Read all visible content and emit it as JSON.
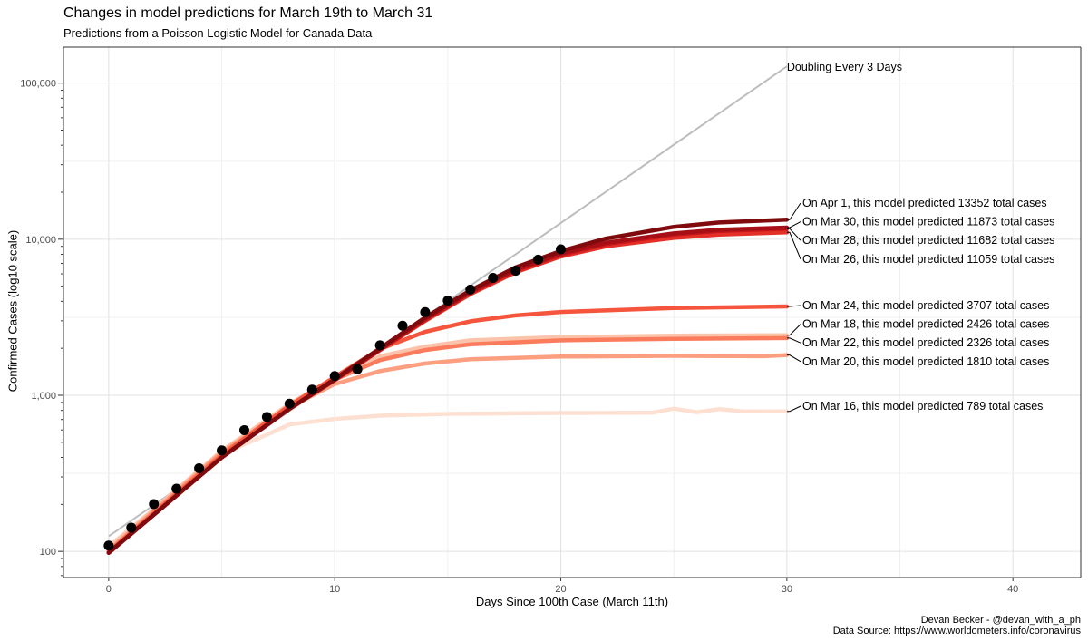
{
  "chart_data": {
    "type": "line",
    "title": "Changes in model predictions for March 19th to March 31",
    "subtitle": "Predictions from a Poisson Logistic Model for Canada Data",
    "xlabel": "Days Since 100th Case (March 11th)",
    "ylabel": "Confirmed Cases (log10 scale)",
    "xlim": [
      -2,
      43
    ],
    "ylim": [
      68,
      170000
    ],
    "yscale": "log10",
    "x_ticks": [
      0,
      10,
      20,
      30,
      40
    ],
    "y_ticks": [
      100,
      1000,
      10000,
      100000
    ],
    "y_tick_labels": [
      "100",
      "1,000",
      "10,000",
      "100,000"
    ],
    "grid": true,
    "caption": [
      "Devan Becker - @devan_with_a_ph",
      "Data Source: https://www.worldometers.info/coronavirus"
    ],
    "doubling": {
      "label": "Doubling Every 3 Days",
      "color": "#bdbdbd",
      "start": [
        0,
        125
      ],
      "end": [
        30,
        128000
      ]
    },
    "observed": {
      "color": "#000000",
      "x": [
        0,
        1,
        2,
        3,
        4,
        5,
        6,
        7,
        8,
        9,
        10,
        11,
        12,
        13,
        14,
        15,
        16,
        17,
        18,
        19,
        20
      ],
      "y": [
        109,
        142,
        201,
        252,
        341,
        444,
        598,
        727,
        884,
        1087,
        1328,
        1470,
        2090,
        2792,
        3409,
        4043,
        4757,
        5655,
        6280,
        7398,
        8612
      ]
    },
    "series": [
      {
        "name": "On Mar 16, this model predicted 789 total cases",
        "label": "On Mar 16, this model predicted 789 total cases",
        "color": "#fde0d2",
        "x": [
          0,
          5,
          7,
          8,
          10,
          12,
          15,
          20,
          24,
          25,
          26,
          27,
          28,
          30
        ],
        "y": [
          108,
          420,
          560,
          650,
          705,
          740,
          760,
          770,
          772,
          820,
          780,
          815,
          790,
          789
        ]
      },
      {
        "name": "On Mar 18, this model predicted 2426 total cases",
        "label": "On Mar 18, this model predicted 2426 total cases",
        "color": "#fcc3ab",
        "x": [
          0,
          5,
          8,
          10,
          12,
          14,
          16,
          20,
          25,
          30
        ],
        "y": [
          105,
          440,
          880,
          1300,
          1780,
          2050,
          2250,
          2360,
          2410,
          2426
        ]
      },
      {
        "name": "On Mar 20, this model predicted 1810 total cases",
        "label": "On Mar 20, this model predicted 1810 total cases",
        "color": "#fc9f81",
        "x": [
          0,
          5,
          8,
          10,
          12,
          14,
          16,
          20,
          25,
          29,
          30
        ],
        "y": [
          102,
          430,
          840,
          1180,
          1430,
          1600,
          1700,
          1770,
          1790,
          1780,
          1810
        ]
      },
      {
        "name": "On Mar 22, this model predicted 2326 total cases",
        "label": "On Mar 22, this model predicted 2326 total cases",
        "color": "#fb7c5c",
        "x": [
          0,
          5,
          8,
          10,
          12,
          14,
          16,
          20,
          25,
          30
        ],
        "y": [
          100,
          420,
          860,
          1260,
          1680,
          1950,
          2120,
          2250,
          2300,
          2326
        ]
      },
      {
        "name": "On Mar 24, this model predicted 3707 total cases",
        "label": "On Mar 24, this model predicted 3707 total cases",
        "color": "#f5553d",
        "x": [
          0,
          5,
          8,
          10,
          12,
          14,
          16,
          18,
          20,
          25,
          30
        ],
        "y": [
          99,
          410,
          860,
          1310,
          1980,
          2550,
          2980,
          3250,
          3420,
          3620,
          3707
        ]
      },
      {
        "name": "On Mar 26, this model predicted 11059 total cases",
        "label": "On Mar 26, this model predicted 11059 total cases",
        "color": "#e32f27",
        "x": [
          0,
          5,
          8,
          10,
          12,
          14,
          16,
          18,
          20,
          22,
          25,
          27,
          30
        ],
        "y": [
          98,
          400,
          820,
          1250,
          1950,
          3000,
          4450,
          6150,
          7750,
          9000,
          10200,
          10700,
          11059
        ]
      },
      {
        "name": "On Mar 28, this model predicted 11682 total cases",
        "label": "On Mar 28, this model predicted 11682 total cases",
        "color": "#c6171b",
        "x": [
          0,
          5,
          8,
          10,
          12,
          14,
          16,
          18,
          20,
          22,
          25,
          27,
          30
        ],
        "y": [
          98,
          400,
          820,
          1250,
          1950,
          3050,
          4550,
          6300,
          7950,
          9300,
          10700,
          11300,
          11682
        ]
      },
      {
        "name": "On Mar 30, this model predicted 11873 total cases",
        "label": "On Mar 30, this model predicted 11873 total cases",
        "color": "#a50f15",
        "x": [
          0,
          5,
          8,
          10,
          12,
          14,
          16,
          18,
          20,
          22,
          25,
          27,
          30
        ],
        "y": [
          98,
          400,
          820,
          1260,
          1980,
          3100,
          4600,
          6400,
          8100,
          9500,
          10900,
          11500,
          11873
        ]
      },
      {
        "name": "On Apr 1, this model predicted 13352 total cases",
        "label": "On Apr 1, this model predicted 13352 total cases",
        "color": "#800b0f",
        "x": [
          0,
          5,
          8,
          10,
          12,
          14,
          16,
          18,
          20,
          22,
          25,
          27,
          30
        ],
        "y": [
          98,
          400,
          820,
          1270,
          2000,
          3150,
          4700,
          6600,
          8400,
          10100,
          12000,
          12800,
          13352
        ]
      }
    ],
    "label_order": [
      "On Apr 1, this model predicted 13352 total cases",
      "On Mar 30, this model predicted 11873 total cases",
      "On Mar 28, this model predicted 11682 total cases",
      "On Mar 26, this model predicted 11059 total cases",
      "On Mar 24, this model predicted 3707 total cases",
      "On Mar 18, this model predicted 2426 total cases",
      "On Mar 22, this model predicted 2326 total cases",
      "On Mar 20, this model predicted 1810 total cases",
      "On Mar 16, this model predicted 789 total cases"
    ]
  }
}
